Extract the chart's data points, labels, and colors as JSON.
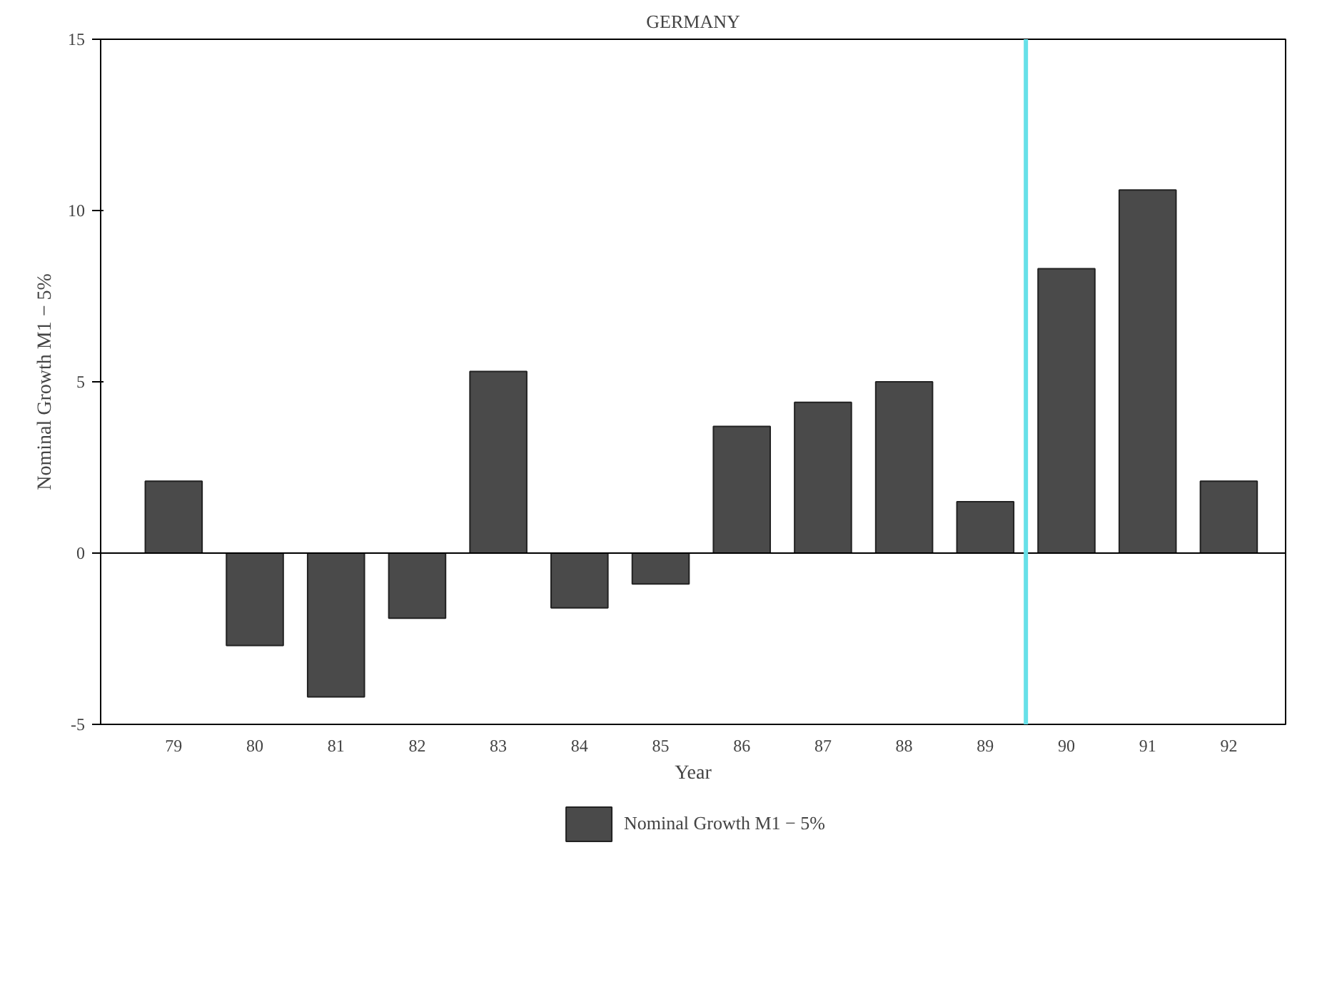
{
  "chart_data": {
    "type": "bar",
    "title": "GERMANY",
    "xlabel": "Year",
    "ylabel": "Nominal Growth M1 − 5%",
    "x": [
      79,
      80,
      81,
      82,
      83,
      84,
      85,
      86,
      87,
      88,
      89,
      90,
      91,
      92
    ],
    "xticks": [
      79,
      80,
      81,
      82,
      83,
      84,
      85,
      86,
      87,
      88,
      89,
      90,
      91,
      92
    ],
    "xlim": [
      78.1,
      92.7
    ],
    "series": [
      {
        "name": "Nominal Growth M1 − 5%",
        "color": "#4a4a4a",
        "values": [
          2.1,
          -2.7,
          -4.2,
          -1.9,
          5.3,
          -1.6,
          -0.9,
          3.7,
          4.4,
          5.0,
          1.5,
          8.3,
          10.6,
          2.1
        ]
      }
    ],
    "ylim": [
      -5,
      15
    ],
    "yticks": [
      -5,
      0,
      5,
      10,
      15
    ],
    "grid": false,
    "legend": "bottom",
    "ref_lines": [
      {
        "axis": "y",
        "value": 0,
        "color": "#000000"
      },
      {
        "axis": "x",
        "value": 89.5,
        "color": "#66e0e8"
      }
    ]
  }
}
